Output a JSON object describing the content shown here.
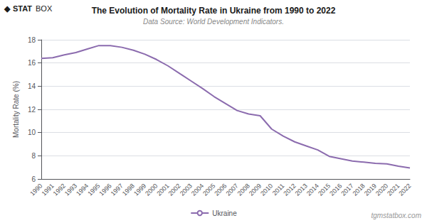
{
  "chart_data": {
    "type": "line",
    "title": "The Evolution of Mortality Rate in Ukraine from 1990 to 2022",
    "subtitle": "Data Source: World Development Indicators.",
    "ylabel": "Mortality Rate (%)",
    "x": [
      1990,
      1991,
      1992,
      1993,
      1994,
      1995,
      1996,
      1997,
      1998,
      1999,
      2000,
      2001,
      2002,
      2003,
      2004,
      2005,
      2006,
      2007,
      2008,
      2009,
      2010,
      2011,
      2012,
      2013,
      2014,
      2015,
      2016,
      2017,
      2018,
      2019,
      2020,
      2021,
      2022
    ],
    "series": [
      {
        "name": "Ukraine",
        "color": "#8B6BAE",
        "values": [
          16.4,
          16.45,
          16.7,
          16.9,
          17.2,
          17.5,
          17.5,
          17.35,
          17.1,
          16.75,
          16.3,
          15.75,
          15.1,
          14.45,
          13.8,
          13.1,
          12.5,
          11.9,
          11.6,
          11.45,
          10.3,
          9.7,
          9.2,
          8.85,
          8.5,
          7.95,
          7.75,
          7.55,
          7.45,
          7.35,
          7.3,
          7.1,
          6.95
        ]
      }
    ],
    "xlim": [
      1990,
      2022
    ],
    "xticks": [
      1990,
      1991,
      1992,
      1993,
      1994,
      1995,
      1996,
      1997,
      1998,
      1999,
      2000,
      2001,
      2002,
      2003,
      2004,
      2005,
      2006,
      2007,
      2008,
      2009,
      2010,
      2011,
      2012,
      2013,
      2014,
      2015,
      2016,
      2017,
      2018,
      2019,
      2020,
      2021,
      2022
    ],
    "ylim": [
      6,
      18
    ],
    "yticks": [
      6,
      8,
      10,
      12,
      14,
      16,
      18
    ],
    "grid": true,
    "legend": "bottom",
    "annotations": [
      "◆",
      "STAT",
      "BOX",
      "tgmstatbox.com"
    ]
  }
}
